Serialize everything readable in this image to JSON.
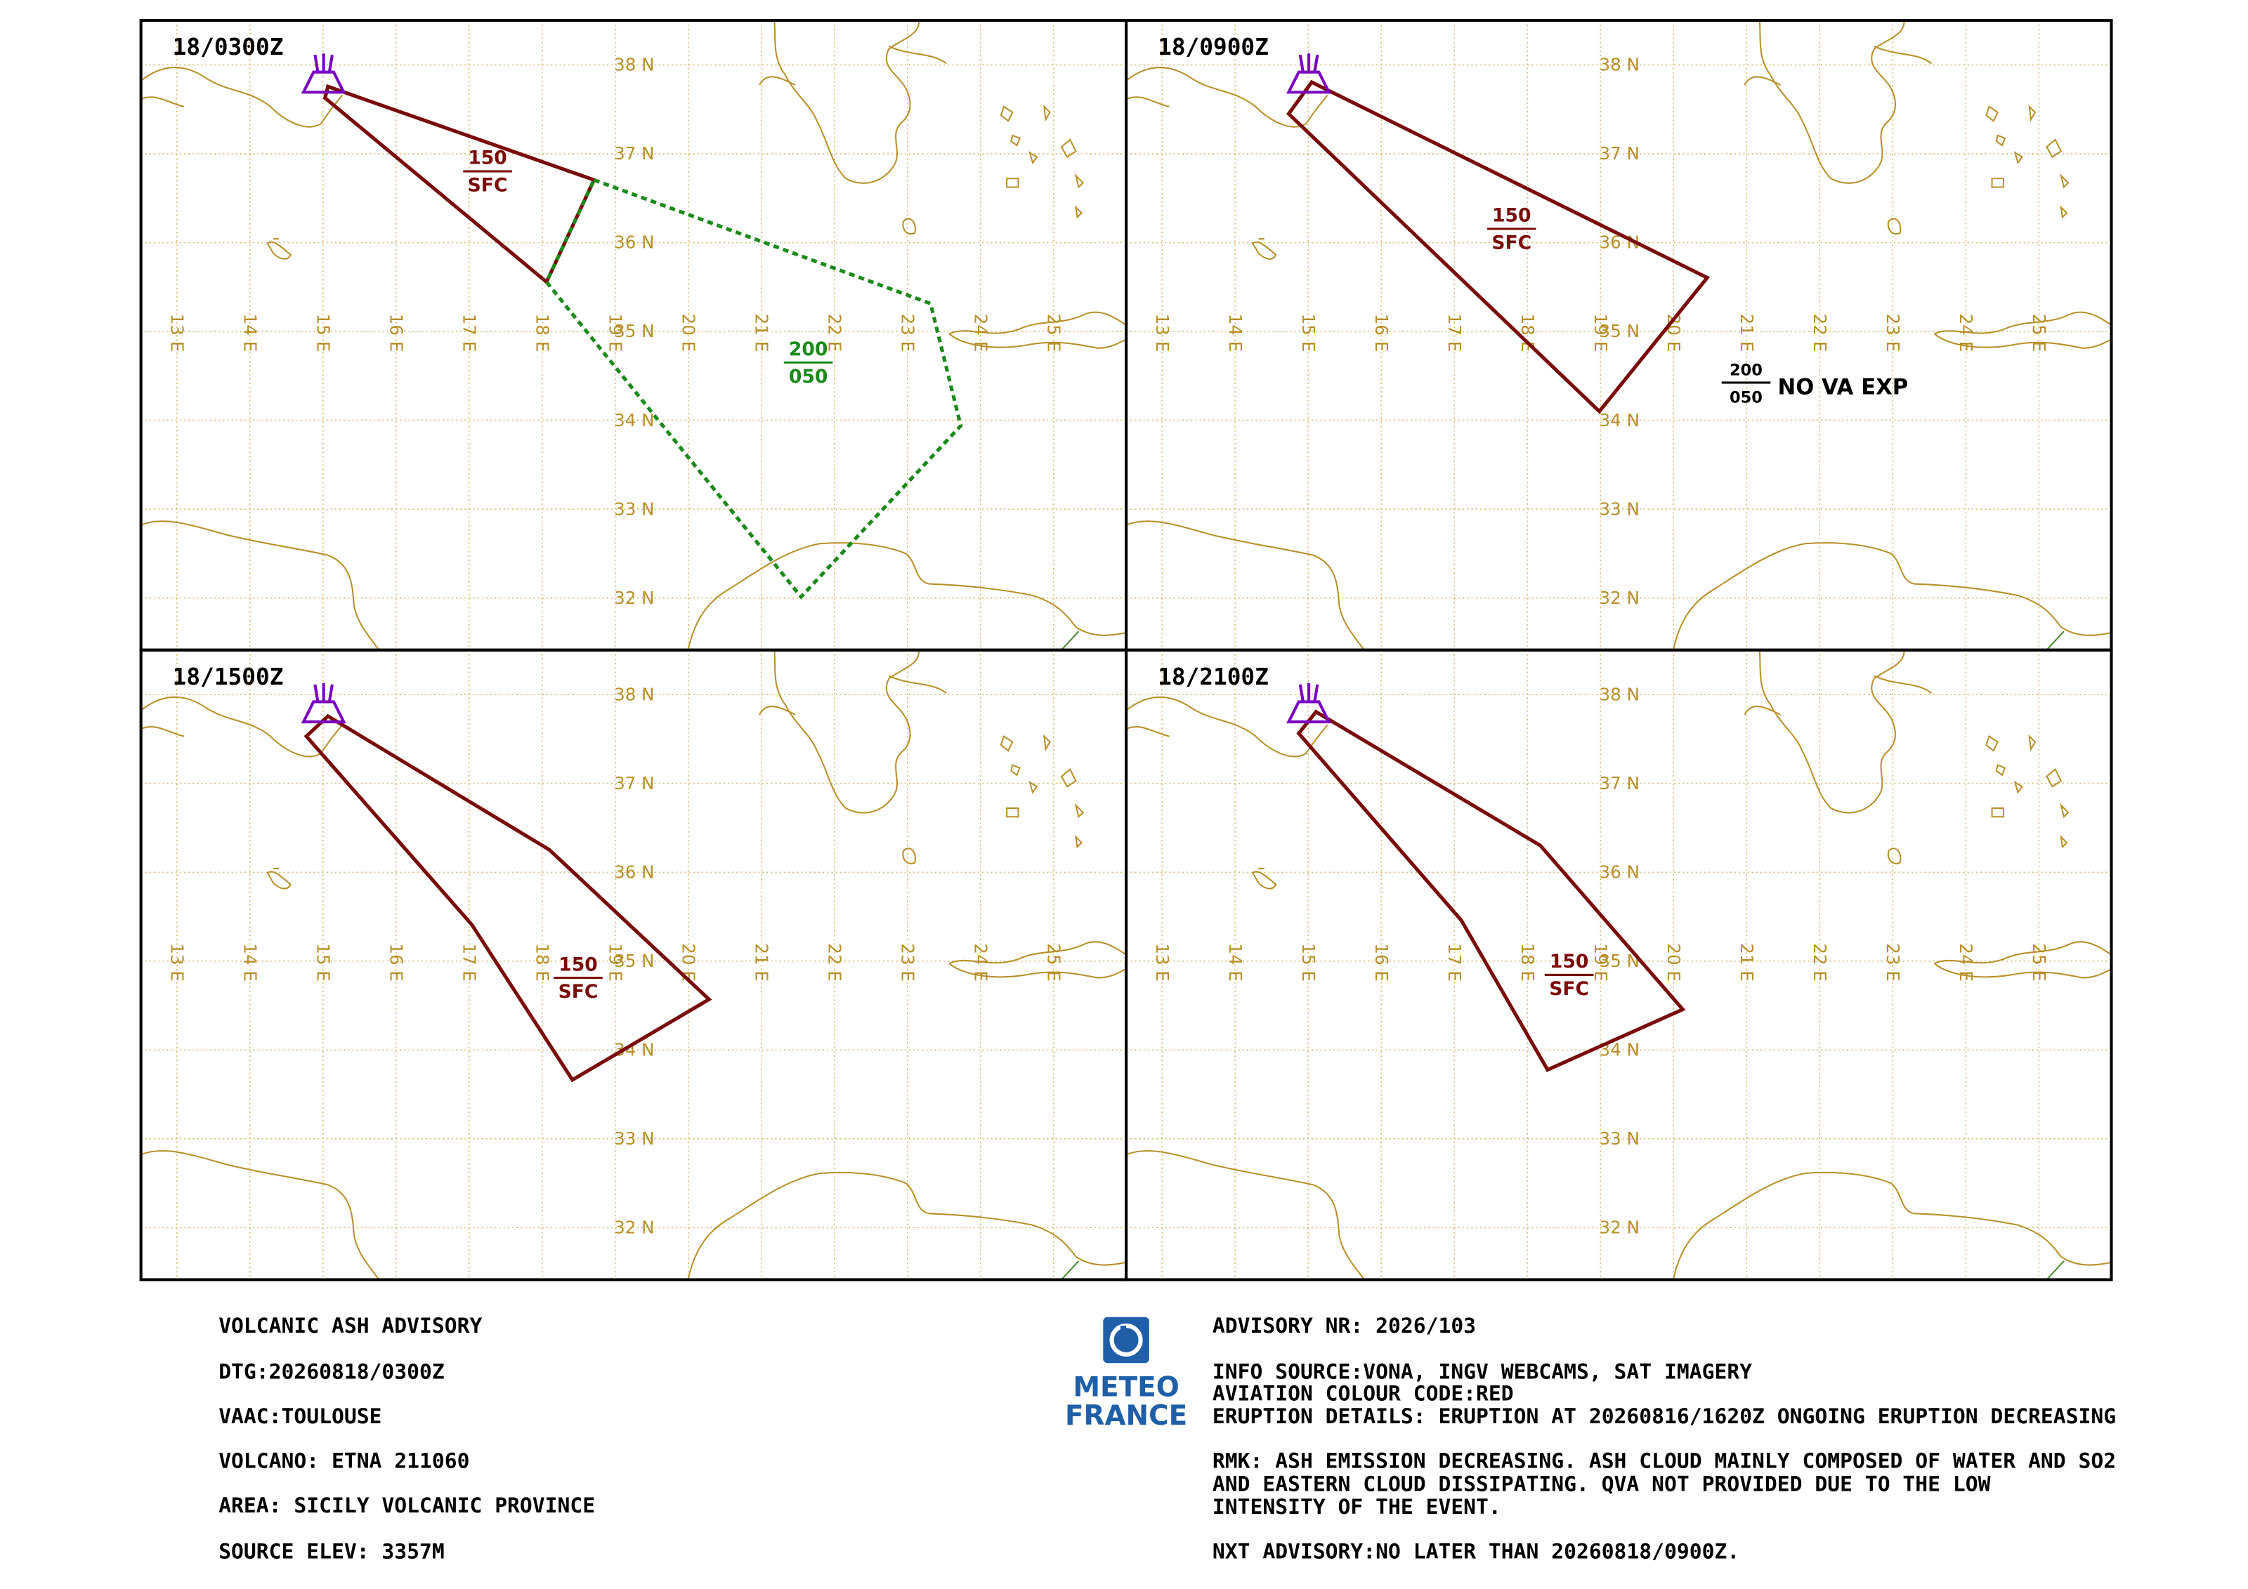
{
  "panels": [
    {
      "time": "18/0300Z",
      "clouds": [
        {
          "top": "150",
          "base": "SFC"
        },
        {
          "top": "200",
          "base": "050"
        }
      ]
    },
    {
      "time": "18/0900Z",
      "clouds": [
        {
          "top": "150",
          "base": "SFC"
        },
        {
          "top": "200",
          "base": "050",
          "remark": "NO VA EXP"
        }
      ]
    },
    {
      "time": "18/1500Z",
      "clouds": [
        {
          "top": "150",
          "base": "SFC"
        }
      ]
    },
    {
      "time": "18/2100Z",
      "clouds": [
        {
          "top": "150",
          "base": "SFC"
        }
      ]
    }
  ],
  "lat_labels": [
    "38 N",
    "37 N",
    "36 N",
    "35 N",
    "34 N",
    "33 N",
    "32 N"
  ],
  "lon_labels": [
    "13 E",
    "14 E",
    "15 E",
    "16 E",
    "17 E",
    "18 E",
    "19 E",
    "20 E",
    "21 E",
    "22 E",
    "23 E",
    "24 E",
    "25 E"
  ],
  "advisory": {
    "left": [
      "VOLCANIC ASH ADVISORY",
      "DTG:20260818/0300Z",
      "VAAC:TOULOUSE",
      "VOLCANO: ETNA 211060",
      "AREA: SICILY VOLCANIC PROVINCE",
      "SOURCE ELEV: 3357M"
    ],
    "right": [
      "ADVISORY NR: 2026/103",
      "INFO SOURCE:VONA, INGV WEBCAMS, SAT IMAGERY",
      "AVIATION COLOUR CODE:RED",
      "ERUPTION DETAILS: ERUPTION AT 20260816/1620Z ONGOING ERUPTION DECREASING",
      "RMK: ASH EMISSION DECREASING. ASH CLOUD MAINLY  COMPOSED OF WATER AND SO2",
      "AND EASTERN CLOUD  DISSIPATING. QVA NOT PROVIDED DUE TO THE LOW",
      "INTENSITY OF THE EVENT.",
      "NXT ADVISORY:NO LATER THAN 20260818/0900Z."
    ]
  },
  "logo": {
    "line1": "METEO",
    "line2": "FRANCE"
  }
}
